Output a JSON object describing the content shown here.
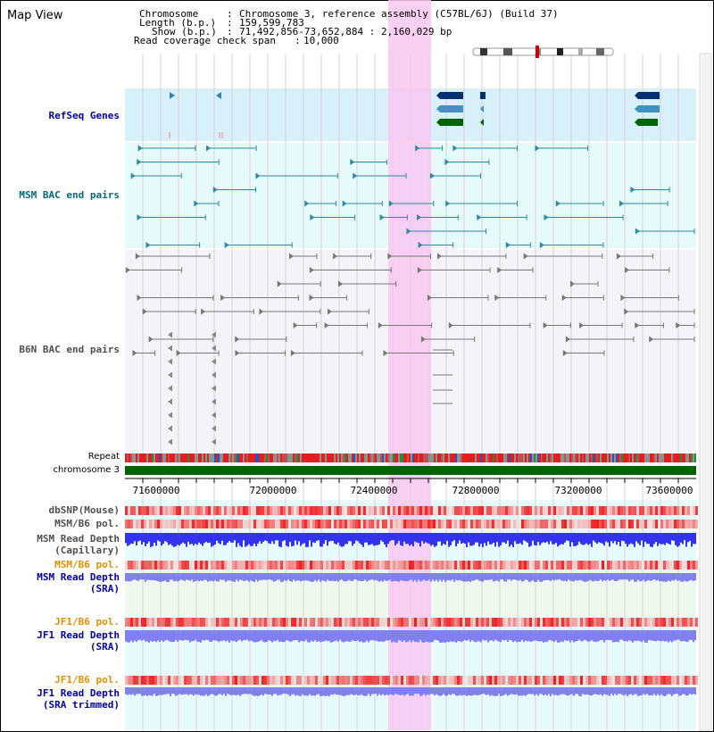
{
  "app": {
    "title": "Map View"
  },
  "info": {
    "chromosome_key": "Chromosome",
    "chromosome_val": "Chromosome 3, reference assembly (C57BL/6J) (Build 37)",
    "length_key": "Length (b.p.)",
    "length_val": "159,599,783",
    "show_key": "Show (b.p.)",
    "show_val": "71,492,856-73,652,884 : 2,160,029 bp",
    "coverage_key": "Read coverage check span",
    "coverage_val": "10,000"
  },
  "tracks": {
    "refseq": "RefSeq Genes",
    "msm_bac": "MSM BAC end pairs",
    "b6n_bac": "B6N BAC end pairs",
    "repeat": "Repeat",
    "chromosome": "chromosome 3",
    "dbsnp": "dbSNP(Mouse)",
    "msm_b6_pol_1": "MSM/B6 pol.",
    "msm_read_depth_cap_1": "MSM Read Depth",
    "msm_read_depth_cap_2": "(Capillary)",
    "msm_b6_pol_2": "MSM/B6 pol.",
    "msm_read_depth_sra_1": "MSM Read Depth",
    "msm_read_depth_sra_2": "(SRA)",
    "jf1_b6_pol_1": "JF1/B6 pol.",
    "jf1_read_depth_1": "JF1 Read Depth",
    "jf1_read_depth_2": "(SRA)",
    "jf1_b6_pol_2": "JF1/B6 pol.",
    "jf1_read_depth_trim_1": "JF1 Read Depth",
    "jf1_read_depth_trim_2": "(SRA trimmed)"
  },
  "axis": {
    "ticks": [
      "71600000",
      "72000000",
      "72400000",
      "72800000",
      "73200000",
      "73600000"
    ]
  },
  "colors": {
    "label_black": "#000000",
    "label_blue": "#0000aa",
    "label_teal": "#006b80",
    "label_gray": "#505050",
    "label_orange": "#e09000",
    "highlight": "#f8c8f0",
    "chromosome_band": "#006400",
    "depth_blue": "#3333ee",
    "depth_light": "#8080ee"
  }
}
